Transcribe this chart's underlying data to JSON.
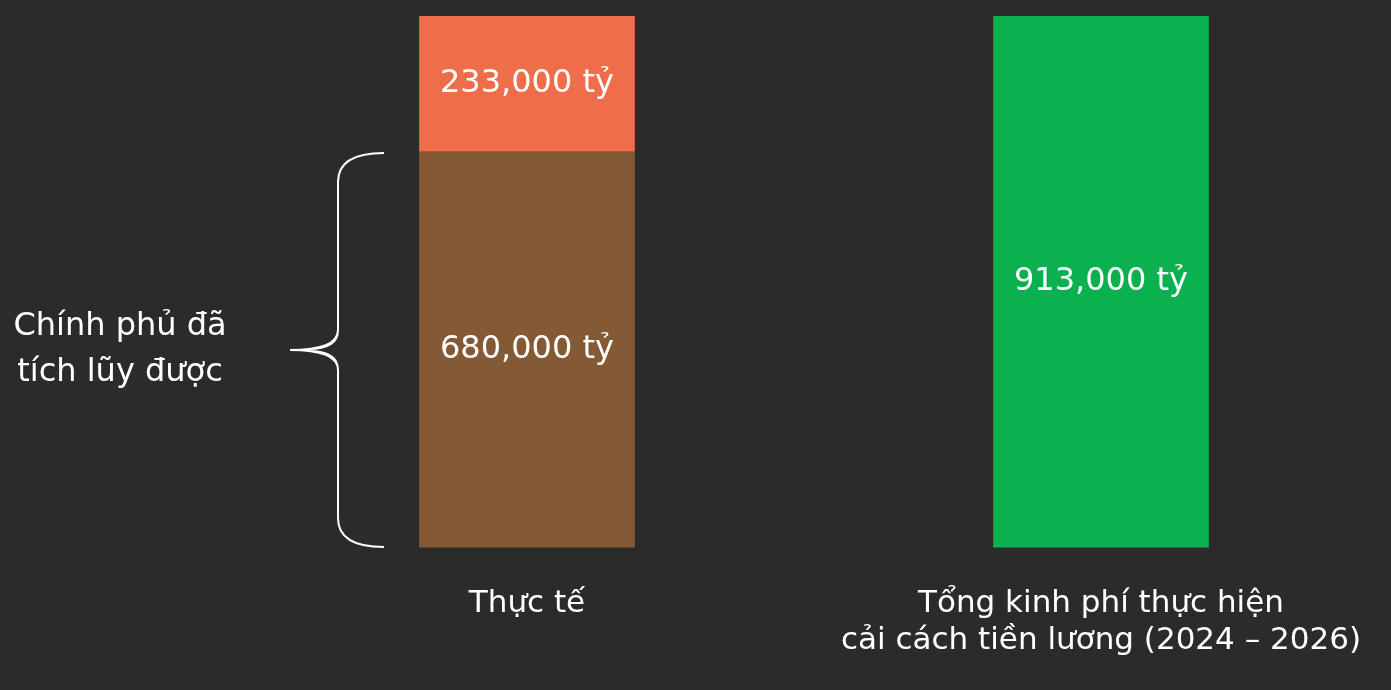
{
  "chart_data": {
    "type": "bar",
    "stacked": true,
    "categories": [
      "Thực tế",
      "Tổng kinh phí thực hiện cải cách tiền lương (2024 – 2026)"
    ],
    "series": [
      {
        "color": "#845a36",
        "values": [
          680000,
          null
        ],
        "value_labels": [
          "680,000 tỷ",
          null
        ]
      },
      {
        "color": "#ee6e4b",
        "values": [
          233000,
          null
        ],
        "value_labels": [
          "233,000 tỷ",
          null
        ]
      },
      {
        "color": "#0bb04f",
        "values": [
          null,
          913000
        ],
        "value_labels": [
          null,
          "913,000 tỷ"
        ]
      }
    ],
    "annotations": [
      "Chính phủ đã tích lũy được"
    ]
  }
}
